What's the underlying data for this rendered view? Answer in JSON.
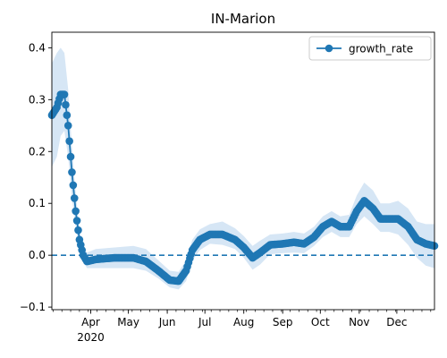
{
  "chart_data": {
    "type": "line",
    "title": "IN-Marion",
    "xlabel": "",
    "ylabel": "",
    "x_range": [
      "2020-03-01",
      "2020-12-31"
    ],
    "ylim": [
      -0.105,
      0.43
    ],
    "y_ticks": [
      -0.1,
      0.0,
      0.1,
      0.2,
      0.3,
      0.4
    ],
    "y_tick_labels": [
      "−0.1",
      "0.0",
      "0.1",
      "0.2",
      "0.3",
      "0.4"
    ],
    "x_ticks": [
      {
        "date": "2020-04-01",
        "label": "Apr",
        "sublabel": "2020"
      },
      {
        "date": "2020-05-01",
        "label": "May"
      },
      {
        "date": "2020-06-01",
        "label": "Jun"
      },
      {
        "date": "2020-07-01",
        "label": "Jul"
      },
      {
        "date": "2020-08-01",
        "label": "Aug"
      },
      {
        "date": "2020-09-01",
        "label": "Sep"
      },
      {
        "date": "2020-10-01",
        "label": "Oct"
      },
      {
        "date": "2020-11-01",
        "label": "Nov"
      },
      {
        "date": "2020-12-01",
        "label": "Dec"
      }
    ],
    "grid": false,
    "legend_position": "top-right",
    "reference_line": {
      "y": 0.0,
      "style": "dashed",
      "color": "#1f77b4"
    },
    "series": [
      {
        "name": "growth_rate",
        "color": "#1f77b4",
        "band_color": "#d6e6f5",
        "points": [
          [
            "2020-03-01",
            0.27,
            0.17,
            0.37
          ],
          [
            "2020-03-05",
            0.285,
            0.19,
            0.39
          ],
          [
            "2020-03-08",
            0.31,
            0.23,
            0.4
          ],
          [
            "2020-03-11",
            0.31,
            0.24,
            0.39
          ],
          [
            "2020-03-14",
            0.25,
            0.19,
            0.32
          ],
          [
            "2020-03-17",
            0.16,
            0.11,
            0.21
          ],
          [
            "2020-03-20",
            0.085,
            0.055,
            0.12
          ],
          [
            "2020-03-23",
            0.03,
            0.01,
            0.05
          ],
          [
            "2020-03-26",
            0.0,
            -0.012,
            0.015
          ],
          [
            "2020-03-29",
            -0.012,
            -0.025,
            0.005
          ],
          [
            "2020-04-05",
            -0.008,
            -0.025,
            0.012
          ],
          [
            "2020-04-20",
            -0.005,
            -0.025,
            0.015
          ],
          [
            "2020-05-05",
            -0.005,
            -0.025,
            0.018
          ],
          [
            "2020-05-15",
            -0.012,
            -0.03,
            0.012
          ],
          [
            "2020-05-25",
            -0.03,
            -0.045,
            -0.01
          ],
          [
            "2020-06-03",
            -0.048,
            -0.062,
            -0.03
          ],
          [
            "2020-06-10",
            -0.05,
            -0.066,
            -0.032
          ],
          [
            "2020-06-16",
            -0.03,
            -0.05,
            -0.01
          ],
          [
            "2020-06-21",
            0.01,
            -0.01,
            0.03
          ],
          [
            "2020-06-27",
            0.03,
            0.01,
            0.05
          ],
          [
            "2020-07-05",
            0.04,
            0.022,
            0.06
          ],
          [
            "2020-07-15",
            0.04,
            0.02,
            0.065
          ],
          [
            "2020-07-25",
            0.03,
            0.012,
            0.052
          ],
          [
            "2020-08-01",
            0.015,
            -0.005,
            0.037
          ],
          [
            "2020-08-08",
            -0.005,
            -0.028,
            0.018
          ],
          [
            "2020-08-14",
            0.005,
            -0.018,
            0.028
          ],
          [
            "2020-08-22",
            0.02,
            0.002,
            0.04
          ],
          [
            "2020-09-01",
            0.022,
            0.004,
            0.042
          ],
          [
            "2020-09-10",
            0.025,
            0.005,
            0.045
          ],
          [
            "2020-09-18",
            0.022,
            0.004,
            0.042
          ],
          [
            "2020-09-26",
            0.035,
            0.018,
            0.055
          ],
          [
            "2020-10-03",
            0.055,
            0.035,
            0.075
          ],
          [
            "2020-10-10",
            0.065,
            0.045,
            0.085
          ],
          [
            "2020-10-17",
            0.055,
            0.035,
            0.075
          ],
          [
            "2020-10-24",
            0.055,
            0.035,
            0.078
          ],
          [
            "2020-10-30",
            0.085,
            0.06,
            0.115
          ],
          [
            "2020-11-05",
            0.105,
            0.075,
            0.14
          ],
          [
            "2020-11-12",
            0.09,
            0.06,
            0.125
          ],
          [
            "2020-11-18",
            0.07,
            0.045,
            0.1
          ],
          [
            "2020-11-25",
            0.07,
            0.045,
            0.1
          ],
          [
            "2020-12-02",
            0.07,
            0.04,
            0.105
          ],
          [
            "2020-12-10",
            0.055,
            0.02,
            0.09
          ],
          [
            "2020-12-17",
            0.03,
            -0.005,
            0.065
          ],
          [
            "2020-12-24",
            0.022,
            -0.02,
            0.06
          ],
          [
            "2020-12-31",
            0.018,
            -0.025,
            0.06
          ]
        ]
      }
    ]
  }
}
